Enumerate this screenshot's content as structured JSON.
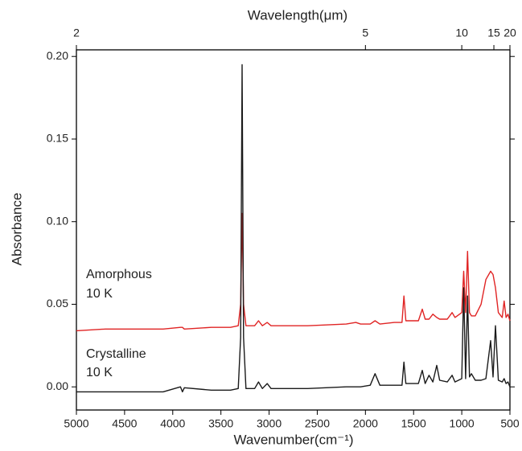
{
  "chart_data": {
    "type": "line",
    "xlabel": "Wavenumber(cm⁻¹)",
    "ylabel": "Absorbance",
    "x2label": "Wavelength(μm)",
    "x2ticks": [
      2,
      5,
      10,
      15,
      20
    ],
    "xlim": [
      5000,
      500
    ],
    "xticks": [
      5000,
      4500,
      4000,
      3500,
      3000,
      2500,
      2000,
      1500,
      1000,
      500
    ],
    "ylim": [
      -0.014,
      0.204
    ],
    "yticks": [
      {
        "value": 0,
        "label": "0.00"
      },
      {
        "value": 0.05,
        "label": "0.05"
      },
      {
        "value": 0.1,
        "label": "0.10"
      },
      {
        "value": 0.15,
        "label": "0.15"
      },
      {
        "value": 0.2,
        "label": "0.20"
      }
    ],
    "x": [
      5000,
      4700,
      4400,
      4100,
      3920,
      3900,
      3880,
      3600,
      3400,
      3320,
      3295,
      3280,
      3265,
      3240,
      3150,
      3110,
      3070,
      3020,
      2980,
      2600,
      2200,
      2100,
      2050,
      1950,
      1900,
      1850,
      1700,
      1620,
      1600,
      1580,
      1450,
      1410,
      1380,
      1340,
      1300,
      1260,
      1230,
      1150,
      1100,
      1070,
      1000,
      980,
      960,
      940,
      920,
      900,
      860,
      800,
      750,
      700,
      675,
      650,
      620,
      580,
      560,
      540,
      520,
      500
    ],
    "series": [
      {
        "label_lines": [
          "Amorphous",
          "10 K"
        ],
        "color": "#e02424",
        "values": [
          0.034,
          0.035,
          0.035,
          0.035,
          0.036,
          0.036,
          0.035,
          0.036,
          0.036,
          0.037,
          0.05,
          0.105,
          0.05,
          0.037,
          0.037,
          0.04,
          0.037,
          0.039,
          0.037,
          0.037,
          0.038,
          0.039,
          0.038,
          0.038,
          0.04,
          0.038,
          0.039,
          0.039,
          0.055,
          0.04,
          0.04,
          0.047,
          0.041,
          0.041,
          0.044,
          0.042,
          0.041,
          0.041,
          0.045,
          0.042,
          0.045,
          0.07,
          0.045,
          0.082,
          0.045,
          0.043,
          0.043,
          0.05,
          0.065,
          0.07,
          0.068,
          0.06,
          0.045,
          0.042,
          0.052,
          0.042,
          0.044,
          0.04
        ]
      },
      {
        "label_lines": [
          "Crystalline",
          "10 K"
        ],
        "color": "#1a1a1a",
        "values": [
          -0.003,
          -0.003,
          -0.003,
          -0.003,
          0.0,
          -0.003,
          -0.0005,
          -0.002,
          -0.002,
          -0.001,
          0.03,
          0.195,
          0.03,
          -0.001,
          -0.001,
          0.003,
          -0.001,
          0.002,
          -0.001,
          -0.001,
          0.0,
          0.0,
          0.0,
          0.001,
          0.008,
          0.001,
          0.001,
          0.001,
          0.015,
          0.002,
          0.002,
          0.01,
          0.002,
          0.007,
          0.003,
          0.013,
          0.004,
          0.003,
          0.007,
          0.003,
          0.005,
          0.06,
          0.005,
          0.055,
          0.006,
          0.008,
          0.004,
          0.004,
          0.005,
          0.028,
          0.006,
          0.037,
          0.004,
          0.003,
          0.005,
          0.002,
          0.003,
          0.0
        ]
      }
    ]
  }
}
